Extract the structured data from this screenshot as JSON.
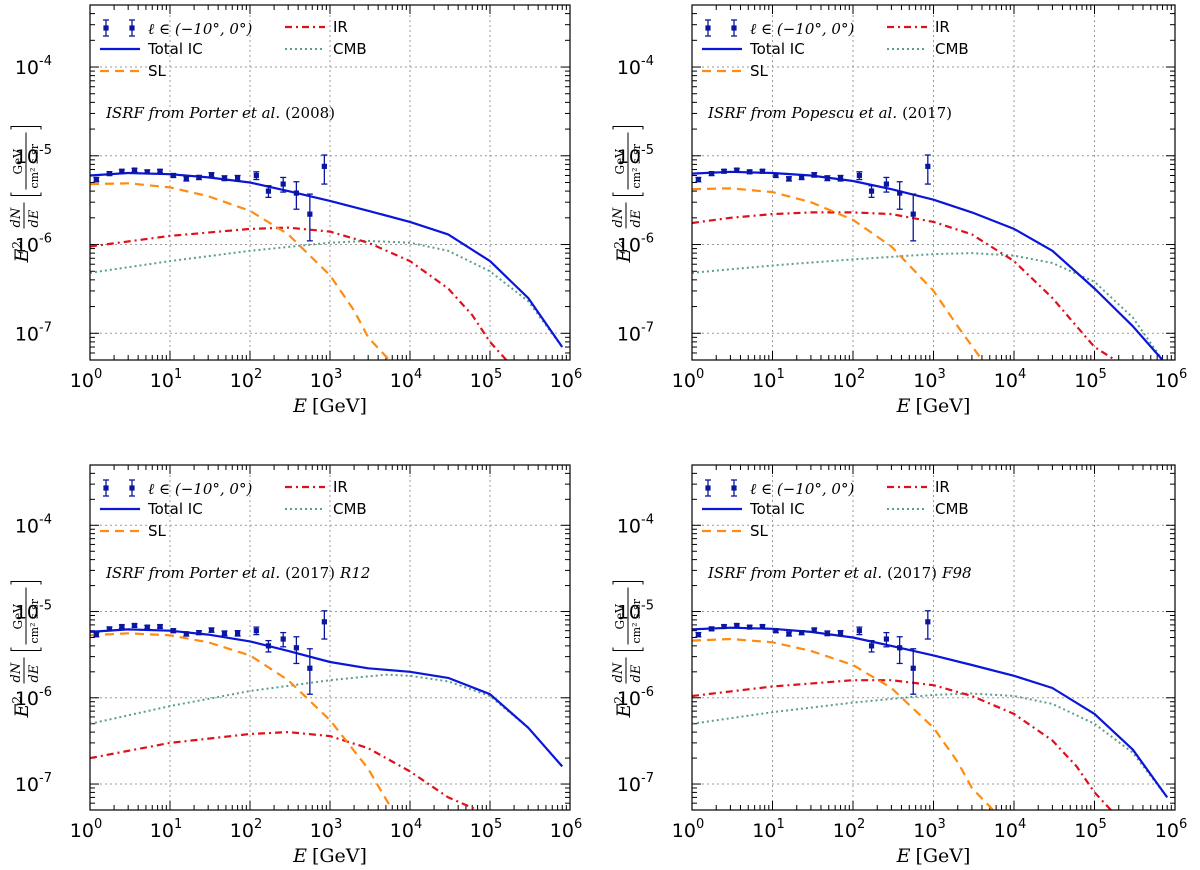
{
  "chart_data": [
    {
      "type": "line",
      "panel": "top-left",
      "annotation": {
        "prefix": "ISRF from Porter et al.",
        "year": "(2008)",
        "suffix": ""
      },
      "xlabel": "E [GeV]",
      "ylabel": "E^2 dN/dE [GeV/(cm^2 s sr)]",
      "xlim": [
        1,
        1000000
      ],
      "ylim": [
        5e-08,
        0.0005
      ],
      "xscale": "log",
      "yscale": "log",
      "grid": true,
      "legend": {
        "placement": "top-left",
        "data_label": "ℓ ∈ (−10°, 0°)"
      },
      "data_points": {
        "name": "ℓ ∈ (−10°, 0°)",
        "x": [
          1.2,
          1.75,
          2.5,
          3.6,
          5.2,
          7.5,
          11,
          16,
          23,
          33,
          48,
          70,
          120,
          170,
          260,
          380,
          560,
          850
        ],
        "y": [
          5.4e-06,
          6.3e-06,
          6.7e-06,
          6.9e-06,
          6.6e-06,
          6.7e-06,
          6e-06,
          5.5e-06,
          5.7e-06,
          6.1e-06,
          5.6e-06,
          5.6e-06,
          6e-06,
          4e-06,
          4.8e-06,
          3.8e-06,
          2.2e-06,
          7.6e-06
        ],
        "yerr_low": [
          3e-07,
          3e-07,
          3e-07,
          3e-07,
          3e-07,
          3e-07,
          3e-07,
          3e-07,
          3e-07,
          3.5e-07,
          3.5e-07,
          4e-07,
          6e-07,
          6e-07,
          9e-07,
          1.3e-06,
          1.1e-06,
          2.8e-06
        ],
        "yerr_high": [
          3e-07,
          3e-07,
          3e-07,
          3e-07,
          3e-07,
          3e-07,
          3e-07,
          3e-07,
          3e-07,
          3.5e-07,
          3.5e-07,
          4e-07,
          6e-07,
          6e-07,
          9e-07,
          1.3e-06,
          1.5e-06,
          2.6e-06
        ]
      },
      "series": [
        {
          "name": "Total IC",
          "x": [
            1,
            3,
            10,
            30,
            100,
            300,
            1000,
            3000,
            10000,
            30000,
            100000,
            300000,
            800000
          ],
          "y": [
            6e-06,
            6.4e-06,
            6.2e-06,
            5.7e-06,
            5e-06,
            4e-06,
            3.1e-06,
            2.4e-06,
            1.8e-06,
            1.3e-06,
            6.5e-07,
            2.5e-07,
            7e-08
          ]
        },
        {
          "name": "SL",
          "x": [
            1,
            3,
            10,
            30,
            100,
            300,
            1000,
            2000,
            3000,
            5500
          ],
          "y": [
            4.8e-06,
            4.9e-06,
            4.4e-06,
            3.5e-06,
            2.4e-06,
            1.3e-06,
            4.5e-07,
            1.8e-07,
            9e-08,
            5e-08
          ]
        },
        {
          "name": "IR",
          "x": [
            1,
            10,
            100,
            300,
            1000,
            3000,
            10000,
            30000,
            60000,
            100000,
            160000
          ],
          "y": [
            9.5e-07,
            1.25e-06,
            1.5e-06,
            1.55e-06,
            1.4e-06,
            1.05e-06,
            6.5e-07,
            3.2e-07,
            1.6e-07,
            8e-08,
            5e-08
          ]
        },
        {
          "name": "CMB",
          "x": [
            1,
            10,
            100,
            1000,
            3000,
            10000,
            30000,
            100000,
            300000,
            800000
          ],
          "y": [
            4.8e-07,
            6.5e-07,
            8.5e-07,
            1.05e-06,
            1.1e-06,
            1.05e-06,
            8.5e-07,
            5e-07,
            2.3e-07,
            7e-08
          ]
        }
      ]
    },
    {
      "type": "line",
      "panel": "top-right",
      "annotation": {
        "prefix": "ISRF from Popescu et al.",
        "year": "(2017)",
        "suffix": ""
      },
      "xlabel": "E [GeV]",
      "ylabel": "E^2 dN/dE [GeV/(cm^2 s sr)]",
      "xlim": [
        1,
        1000000
      ],
      "ylim": [
        5e-08,
        0.0005
      ],
      "xscale": "log",
      "yscale": "log",
      "grid": true,
      "legend": {
        "placement": "top-left",
        "data_label": "ℓ ∈ (−10°, 0°)"
      },
      "data_points": {
        "name": "ℓ ∈ (−10°, 0°)",
        "x": [
          1.2,
          1.75,
          2.5,
          3.6,
          5.2,
          7.5,
          11,
          16,
          23,
          33,
          48,
          70,
          120,
          170,
          260,
          380,
          560,
          850
        ],
        "y": [
          5.4e-06,
          6.3e-06,
          6.7e-06,
          6.9e-06,
          6.6e-06,
          6.7e-06,
          6e-06,
          5.5e-06,
          5.7e-06,
          6.1e-06,
          5.6e-06,
          5.6e-06,
          6e-06,
          4e-06,
          4.8e-06,
          3.8e-06,
          2.2e-06,
          7.6e-06
        ],
        "yerr_low": [
          3e-07,
          3e-07,
          3e-07,
          3e-07,
          3e-07,
          3e-07,
          3e-07,
          3e-07,
          3e-07,
          3.5e-07,
          3.5e-07,
          4e-07,
          6e-07,
          6e-07,
          9e-07,
          1.3e-06,
          1.1e-06,
          2.8e-06
        ],
        "yerr_high": [
          3e-07,
          3e-07,
          3e-07,
          3e-07,
          3e-07,
          3e-07,
          3e-07,
          3e-07,
          3e-07,
          3.5e-07,
          3.5e-07,
          4e-07,
          6e-07,
          6e-07,
          9e-07,
          1.3e-06,
          1.5e-06,
          2.6e-06
        ]
      },
      "series": [
        {
          "name": "Total IC",
          "x": [
            1,
            3,
            10,
            30,
            100,
            300,
            1000,
            3000,
            10000,
            30000,
            100000,
            300000,
            700000
          ],
          "y": [
            6.3e-06,
            6.6e-06,
            6.4e-06,
            6e-06,
            5.2e-06,
            4.2e-06,
            3.2e-06,
            2.3e-06,
            1.5e-06,
            8.5e-07,
            3.2e-07,
            1.2e-07,
            5e-08
          ]
        },
        {
          "name": "SL",
          "x": [
            1,
            3,
            10,
            30,
            100,
            300,
            1000,
            2000,
            4000
          ],
          "y": [
            4.2e-06,
            4.3e-06,
            3.9e-06,
            3e-06,
            1.9e-06,
            9.5e-07,
            3e-07,
            1.2e-07,
            5e-08
          ]
        },
        {
          "name": "IR",
          "x": [
            1,
            3,
            10,
            30,
            100,
            300,
            1000,
            3000,
            10000,
            30000,
            60000,
            100000,
            180000
          ],
          "y": [
            1.75e-06,
            2e-06,
            2.2e-06,
            2.3e-06,
            2.3e-06,
            2.2e-06,
            1.8e-06,
            1.3e-06,
            6.5e-07,
            2.5e-07,
            1.2e-07,
            7e-08,
            5e-08
          ]
        },
        {
          "name": "CMB",
          "x": [
            1,
            10,
            100,
            1000,
            3000,
            10000,
            30000,
            100000,
            300000,
            700000
          ],
          "y": [
            4.8e-07,
            5.8e-07,
            6.8e-07,
            7.8e-07,
            8e-07,
            7.5e-07,
            6.2e-07,
            3.8e-07,
            1.5e-07,
            5e-08
          ]
        }
      ]
    },
    {
      "type": "line",
      "panel": "bottom-left",
      "annotation": {
        "prefix": "ISRF from Porter et al.",
        "year": "(2017)",
        "suffix": "R12"
      },
      "xlabel": "E [GeV]",
      "ylabel": "E^2 dN/dE [GeV/(cm^2 s sr)]",
      "xlim": [
        1,
        1000000
      ],
      "ylim": [
        5e-08,
        0.0005
      ],
      "xscale": "log",
      "yscale": "log",
      "grid": true,
      "legend": {
        "placement": "top-left",
        "data_label": "ℓ ∈ (−10°, 0°)"
      },
      "data_points": {
        "name": "ℓ ∈ (−10°, 0°)",
        "x": [
          1.2,
          1.75,
          2.5,
          3.6,
          5.2,
          7.5,
          11,
          16,
          23,
          33,
          48,
          70,
          120,
          170,
          260,
          380,
          560,
          850
        ],
        "y": [
          5.4e-06,
          6.3e-06,
          6.7e-06,
          6.9e-06,
          6.6e-06,
          6.7e-06,
          6e-06,
          5.5e-06,
          5.7e-06,
          6.1e-06,
          5.6e-06,
          5.6e-06,
          6e-06,
          4e-06,
          4.8e-06,
          3.8e-06,
          2.2e-06,
          7.6e-06
        ],
        "yerr_low": [
          3e-07,
          3e-07,
          3e-07,
          3e-07,
          3e-07,
          3e-07,
          3e-07,
          3e-07,
          3e-07,
          3.5e-07,
          3.5e-07,
          4e-07,
          6e-07,
          6e-07,
          9e-07,
          1.3e-06,
          1.1e-06,
          2.8e-06
        ],
        "yerr_high": [
          3e-07,
          3e-07,
          3e-07,
          3e-07,
          3e-07,
          3e-07,
          3e-07,
          3e-07,
          3e-07,
          3.5e-07,
          3.5e-07,
          4e-07,
          6e-07,
          6e-07,
          9e-07,
          1.3e-06,
          1.5e-06,
          2.6e-06
        ]
      },
      "series": [
        {
          "name": "Total IC",
          "x": [
            1,
            3,
            10,
            30,
            100,
            300,
            1000,
            3000,
            10000,
            30000,
            100000,
            300000,
            800000
          ],
          "y": [
            5.8e-06,
            6.2e-06,
            6e-06,
            5.4e-06,
            4.5e-06,
            3.5e-06,
            2.6e-06,
            2.2e-06,
            2e-06,
            1.7e-06,
            1.1e-06,
            4.5e-07,
            1.6e-07
          ]
        },
        {
          "name": "SL",
          "x": [
            1,
            3,
            10,
            30,
            100,
            300,
            1000,
            3000,
            6000
          ],
          "y": [
            5.3e-06,
            5.6e-06,
            5.3e-06,
            4.4e-06,
            3.1e-06,
            1.6e-06,
            5.5e-07,
            1.5e-07,
            5e-08
          ]
        },
        {
          "name": "IR",
          "x": [
            1,
            10,
            100,
            300,
            1000,
            3000,
            10000,
            30000,
            70000
          ],
          "y": [
            2e-07,
            3e-07,
            3.8e-07,
            4e-07,
            3.6e-07,
            2.6e-07,
            1.4e-07,
            7e-08,
            5e-08
          ]
        },
        {
          "name": "CMB",
          "x": [
            1,
            10,
            100,
            1000,
            5000,
            10000,
            30000,
            100000,
            300000,
            800000
          ],
          "y": [
            5e-07,
            8e-07,
            1.2e-06,
            1.6e-06,
            1.85e-06,
            1.8e-06,
            1.55e-06,
            1.05e-06,
            4.5e-07,
            1.6e-07
          ]
        }
      ]
    },
    {
      "type": "line",
      "panel": "bottom-right",
      "annotation": {
        "prefix": "ISRF from Porter et al.",
        "year": "(2017)",
        "suffix": "F98"
      },
      "xlabel": "E [GeV]",
      "ylabel": "E^2 dN/dE [GeV/(cm^2 s sr)]",
      "xlim": [
        1,
        1000000
      ],
      "ylim": [
        5e-08,
        0.0005
      ],
      "xscale": "log",
      "yscale": "log",
      "grid": true,
      "legend": {
        "placement": "top-left",
        "data_label": "ℓ ∈ (−10°, 0°)"
      },
      "data_points": {
        "name": "ℓ ∈ (−10°, 0°)",
        "x": [
          1.2,
          1.75,
          2.5,
          3.6,
          5.2,
          7.5,
          11,
          16,
          23,
          33,
          48,
          70,
          120,
          170,
          260,
          380,
          560,
          850
        ],
        "y": [
          5.4e-06,
          6.3e-06,
          6.7e-06,
          6.9e-06,
          6.6e-06,
          6.7e-06,
          6e-06,
          5.5e-06,
          5.7e-06,
          6.1e-06,
          5.6e-06,
          5.6e-06,
          6e-06,
          4e-06,
          4.8e-06,
          3.8e-06,
          2.2e-06,
          7.6e-06
        ],
        "yerr_low": [
          3e-07,
          3e-07,
          3e-07,
          3e-07,
          3e-07,
          3e-07,
          3e-07,
          3e-07,
          3e-07,
          3.5e-07,
          3.5e-07,
          4e-07,
          6e-07,
          6e-07,
          9e-07,
          1.3e-06,
          1.1e-06,
          2.8e-06
        ],
        "yerr_high": [
          3e-07,
          3e-07,
          3e-07,
          3e-07,
          3e-07,
          3e-07,
          3e-07,
          3e-07,
          3e-07,
          3.5e-07,
          3.5e-07,
          4e-07,
          6e-07,
          6e-07,
          9e-07,
          1.3e-06,
          1.5e-06,
          2.6e-06
        ]
      },
      "series": [
        {
          "name": "Total IC",
          "x": [
            1,
            3,
            10,
            30,
            100,
            300,
            1000,
            3000,
            10000,
            30000,
            100000,
            300000,
            800000
          ],
          "y": [
            6.2e-06,
            6.5e-06,
            6.3e-06,
            5.8e-06,
            5e-06,
            4e-06,
            3.1e-06,
            2.4e-06,
            1.8e-06,
            1.3e-06,
            6.5e-07,
            2.5e-07,
            7e-08
          ]
        },
        {
          "name": "SL",
          "x": [
            1,
            3,
            10,
            30,
            100,
            300,
            1000,
            2000,
            3000,
            5500
          ],
          "y": [
            4.6e-06,
            4.8e-06,
            4.4e-06,
            3.5e-06,
            2.4e-06,
            1.3e-06,
            4.5e-07,
            1.8e-07,
            9e-08,
            5e-08
          ]
        },
        {
          "name": "IR",
          "x": [
            1,
            10,
            100,
            300,
            1000,
            3000,
            10000,
            30000,
            60000,
            100000,
            160000
          ],
          "y": [
            1.05e-06,
            1.35e-06,
            1.6e-06,
            1.6e-06,
            1.4e-06,
            1.05e-06,
            6.5e-07,
            3.2e-07,
            1.6e-07,
            8e-08,
            5e-08
          ]
        },
        {
          "name": "CMB",
          "x": [
            1,
            10,
            100,
            1000,
            3000,
            10000,
            30000,
            100000,
            300000,
            800000
          ],
          "y": [
            5e-07,
            6.8e-07,
            8.8e-07,
            1.08e-06,
            1.12e-06,
            1.05e-06,
            8.5e-07,
            5e-07,
            2.3e-07,
            7e-08
          ]
        }
      ]
    }
  ],
  "axis_text": {
    "x_ticks": [
      "0",
      "1",
      "2",
      "3",
      "4",
      "5",
      "6"
    ],
    "x_tick_base": "10",
    "y_ticks": [
      "-7",
      "-6",
      "-5",
      "-4"
    ],
    "y_tick_base": "10",
    "xlabel_var": "E",
    "xlabel_unit": "[GeV]",
    "ylabel_E": "E",
    "ylabel_pow": "2",
    "ylabel_num": "dN",
    "ylabel_den": "dE",
    "ylabel_unit_num": "GeV",
    "ylabel_unit_den": "cm² s sr",
    "ylabel_num_d": "d"
  },
  "legend_labels": {
    "data": "ℓ ∈ (−10°, 0°)",
    "total": "Total IC",
    "sl": "SL",
    "ir": "IR",
    "cmb": "CMB"
  },
  "colors": {
    "total": "#0a16d8",
    "sl": "#ff8c10",
    "ir": "#e0101a",
    "cmb": "#5a9e8c",
    "data": "#0a16a0",
    "grid": "#9a9a9a"
  }
}
